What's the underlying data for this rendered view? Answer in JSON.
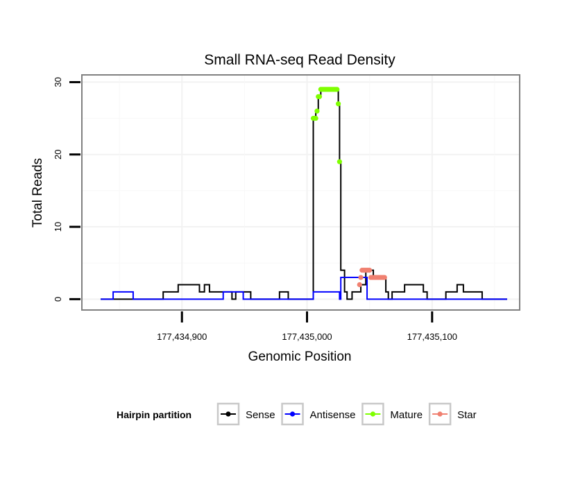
{
  "chart_data": {
    "type": "line",
    "title": "Small RNA-seq Read Density",
    "xlabel": "Genomic Position",
    "ylabel": "Total Reads",
    "xlim": [
      177434820,
      177435170
    ],
    "ylim": [
      -1.5,
      31
    ],
    "xticks": [
      177434900,
      177435000,
      177435100
    ],
    "xtick_labels": [
      "177,434,900",
      "177,435,000",
      "177,435,100"
    ],
    "yticks": [
      0,
      10,
      20,
      30
    ],
    "ytick_labels": [
      "0",
      "10",
      "20",
      "30"
    ],
    "grid": true,
    "legend": {
      "title": "Hairpin partition",
      "position": "bottom",
      "entries": [
        "Sense",
        "Antisense",
        "Mature",
        "Star"
      ]
    },
    "series": [
      {
        "name": "Sense",
        "color": "#000000",
        "kind": "step-line",
        "points": [
          [
            177434835,
            0
          ],
          [
            177434885,
            0
          ],
          [
            177434885,
            1
          ],
          [
            177434897,
            1
          ],
          [
            177434897,
            2
          ],
          [
            177434914,
            2
          ],
          [
            177434914,
            1
          ],
          [
            177434918,
            1
          ],
          [
            177434918,
            2
          ],
          [
            177434922,
            2
          ],
          [
            177434922,
            1
          ],
          [
            177434940,
            1
          ],
          [
            177434940,
            0
          ],
          [
            177434943,
            0
          ],
          [
            177434943,
            1
          ],
          [
            177434955,
            1
          ],
          [
            177434955,
            0
          ],
          [
            177434978,
            0
          ],
          [
            177434978,
            1
          ],
          [
            177434985,
            1
          ],
          [
            177434985,
            0
          ],
          [
            177435005,
            0
          ],
          [
            177435005,
            25
          ],
          [
            177435007,
            25
          ],
          [
            177435007,
            26
          ],
          [
            177435009,
            26
          ],
          [
            177435009,
            28
          ],
          [
            177435011,
            28
          ],
          [
            177435011,
            29
          ],
          [
            177435025,
            29
          ],
          [
            177435025,
            27
          ],
          [
            177435026,
            27
          ],
          [
            177435026,
            19
          ],
          [
            177435027,
            19
          ],
          [
            177435027,
            4
          ],
          [
            177435030,
            4
          ],
          [
            177435030,
            1
          ],
          [
            177435032,
            1
          ],
          [
            177435032,
            0
          ],
          [
            177435036,
            0
          ],
          [
            177435036,
            1
          ],
          [
            177435043,
            1
          ],
          [
            177435043,
            2
          ],
          [
            177435047,
            2
          ],
          [
            177435047,
            4
          ],
          [
            177435053,
            4
          ],
          [
            177435053,
            3
          ],
          [
            177435063,
            3
          ],
          [
            177435063,
            1
          ],
          [
            177435065,
            1
          ],
          [
            177435065,
            0
          ],
          [
            177435068,
            0
          ],
          [
            177435068,
            1
          ],
          [
            177435078,
            1
          ],
          [
            177435078,
            2
          ],
          [
            177435093,
            2
          ],
          [
            177435093,
            1
          ],
          [
            177435096,
            1
          ],
          [
            177435096,
            0
          ],
          [
            177435111,
            0
          ],
          [
            177435111,
            1
          ],
          [
            177435120,
            1
          ],
          [
            177435120,
            2
          ],
          [
            177435125,
            2
          ],
          [
            177435125,
            1
          ],
          [
            177435140,
            1
          ],
          [
            177435140,
            0
          ],
          [
            177435160,
            0
          ]
        ]
      },
      {
        "name": "Antisense",
        "color": "#0000ff",
        "kind": "step-line",
        "points": [
          [
            177434835,
            0
          ],
          [
            177434845,
            0
          ],
          [
            177434845,
            1
          ],
          [
            177434861,
            1
          ],
          [
            177434861,
            0
          ],
          [
            177434933,
            0
          ],
          [
            177434933,
            1
          ],
          [
            177434949,
            1
          ],
          [
            177434949,
            0
          ],
          [
            177435005,
            0
          ],
          [
            177435005,
            1
          ],
          [
            177435026,
            1
          ],
          [
            177435026,
            0
          ],
          [
            177435027,
            0
          ],
          [
            177435027,
            3
          ],
          [
            177435048,
            3
          ],
          [
            177435048,
            0
          ],
          [
            177435160,
            0
          ]
        ]
      },
      {
        "name": "Mature",
        "color": "#7fff00",
        "kind": "points",
        "points": [
          [
            177435005,
            25
          ],
          [
            177435006,
            25
          ],
          [
            177435007,
            25
          ],
          [
            177435008,
            26
          ],
          [
            177435009,
            28
          ],
          [
            177435010,
            28
          ],
          [
            177435011,
            29
          ],
          [
            177435012,
            29
          ],
          [
            177435013,
            29
          ],
          [
            177435014,
            29
          ],
          [
            177435015,
            29
          ],
          [
            177435016,
            29
          ],
          [
            177435017,
            29
          ],
          [
            177435018,
            29
          ],
          [
            177435019,
            29
          ],
          [
            177435020,
            29
          ],
          [
            177435021,
            29
          ],
          [
            177435022,
            29
          ],
          [
            177435023,
            29
          ],
          [
            177435024,
            29
          ],
          [
            177435025,
            27
          ],
          [
            177435026,
            19
          ]
        ]
      },
      {
        "name": "Star",
        "color": "#f08070",
        "kind": "points",
        "points": [
          [
            177435042,
            2
          ],
          [
            177435043,
            3
          ],
          [
            177435044,
            4
          ],
          [
            177435045,
            4
          ],
          [
            177435046,
            4
          ],
          [
            177435047,
            4
          ],
          [
            177435048,
            4
          ],
          [
            177435049,
            4
          ],
          [
            177435050,
            4
          ],
          [
            177435051,
            3
          ],
          [
            177435052,
            3
          ],
          [
            177435053,
            3
          ],
          [
            177435054,
            3
          ],
          [
            177435055,
            3
          ],
          [
            177435056,
            3
          ],
          [
            177435057,
            3
          ],
          [
            177435058,
            3
          ],
          [
            177435059,
            3
          ],
          [
            177435060,
            3
          ],
          [
            177435061,
            3
          ],
          [
            177435062,
            3
          ]
        ]
      }
    ]
  }
}
